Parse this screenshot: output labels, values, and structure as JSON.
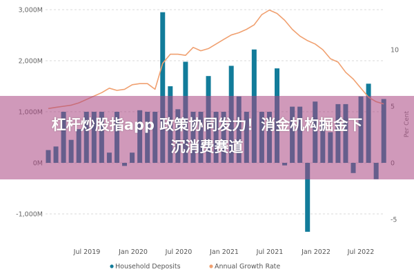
{
  "overlay": {
    "headline_line1": "杠杆炒股指app 政策协同发力！消金机构掘金下",
    "headline_line2": "沉消费赛道"
  },
  "colors": {
    "bar": "#127C9A",
    "line": "#F0A070",
    "overlay": "#B0508A",
    "grid": "#D8D8D8"
  },
  "chart_data": {
    "type": "bar+line",
    "title": "",
    "xlabel": "",
    "ylabel_left": "",
    "ylabel_right": "Per Cent",
    "y_left_ticks": [
      "3,000M",
      "2,000M",
      "1,000M",
      "0M",
      "-1,000M"
    ],
    "y_right_ticks": [
      "10",
      "5",
      "0",
      "-5"
    ],
    "ylim_left": [
      -1500,
      3000
    ],
    "ylim_right": [
      -7,
      14
    ],
    "x_tick_labels": [
      "Jul 2019",
      "Jan 2020",
      "Jul 2020",
      "Jan 2021",
      "Jul 2021",
      "Jan 2022",
      "Jul 2022"
    ],
    "grid": true,
    "legend_position": "bottom",
    "legend": [
      "Household Deposits",
      "Annual Growth Rate"
    ],
    "series": [
      {
        "name": "Household Deposits",
        "type": "bar",
        "axis": "left",
        "unit": "M",
        "values": [
          250,
          320,
          1000,
          450,
          660,
          1000,
          1000,
          1000,
          200,
          1000,
          -60,
          200,
          1030,
          1000,
          1000,
          2950,
          1500,
          1050,
          1980,
          1000,
          1000,
          1700,
          1000,
          1000,
          1900,
          1300,
          1000,
          2220,
          1000,
          1000,
          1850,
          -50,
          1100,
          1100,
          -1350,
          1200,
          800,
          600,
          1150,
          1150,
          -200,
          1300,
          1550,
          -320,
          1250
        ]
      },
      {
        "name": "Annual Growth Rate",
        "type": "line",
        "axis": "right",
        "unit": "%",
        "values": [
          4.8,
          4.9,
          5.0,
          5.1,
          5.3,
          5.6,
          5.9,
          6.2,
          6.6,
          6.4,
          6.5,
          6.9,
          7.0,
          7.0,
          6.5,
          8.8,
          9.6,
          9.6,
          9.5,
          10.2,
          9.9,
          10.1,
          10.5,
          10.9,
          11.3,
          11.5,
          11.8,
          12.2,
          13.1,
          13.5,
          13.2,
          12.6,
          11.8,
          11.2,
          10.8,
          10.5,
          10.0,
          9.2,
          8.9,
          8.0,
          7.4,
          6.6,
          5.8,
          5.4,
          5.2
        ]
      }
    ]
  }
}
